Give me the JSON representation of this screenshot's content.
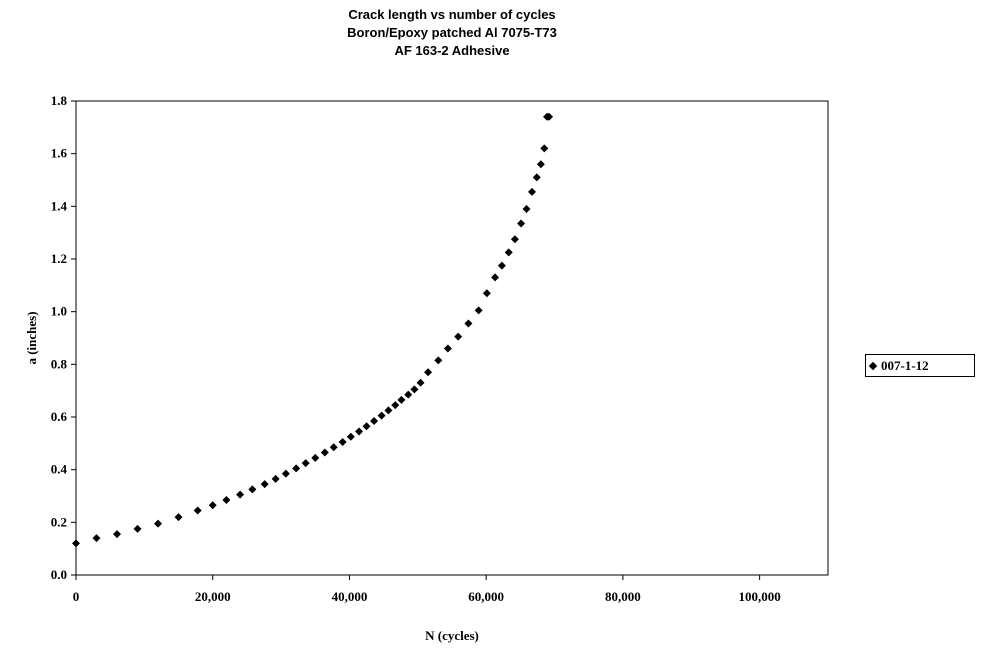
{
  "chart_data": {
    "type": "scatter",
    "title_lines": [
      "Crack length vs number of cycles",
      "Boron/Epoxy patched Al 7075-T73",
      "AF 163-2 Adhesive"
    ],
    "xlabel": "N (cycles)",
    "ylabel": "a (inches)",
    "xlim": [
      0,
      110000
    ],
    "ylim": [
      0,
      1.8
    ],
    "x_ticks": [
      0,
      20000,
      40000,
      60000,
      80000,
      100000
    ],
    "x_tick_labels": [
      "0",
      "20,000",
      "40,000",
      "60,000",
      "80,000",
      "100,000"
    ],
    "y_ticks": [
      0,
      0.2,
      0.4,
      0.6,
      0.8,
      1.0,
      1.2,
      1.4,
      1.6,
      1.8
    ],
    "y_tick_labels": [
      "0.0",
      "0.2",
      "0.4",
      "0.6",
      "0.8",
      "1.0",
      "1.2",
      "1.4",
      "1.6",
      "1.8"
    ],
    "grid": false,
    "legend_position": "right",
    "series": [
      {
        "name": "007-1-12",
        "color": "#000000",
        "marker": "diamond",
        "x": [
          0,
          3000,
          6000,
          9000,
          12000,
          15000,
          17800,
          20000,
          22000,
          24000,
          25800,
          27600,
          29200,
          30700,
          32200,
          33600,
          35000,
          36400,
          37700,
          39000,
          40200,
          41400,
          42500,
          43600,
          44700,
          45700,
          46700,
          47600,
          48600,
          49500,
          50400,
          51500,
          53000,
          54400,
          55900,
          57400,
          58900,
          60100,
          61300,
          62300,
          63300,
          64200,
          65100,
          65900,
          66700,
          67400,
          68000,
          68500,
          68900,
          69200
        ],
        "y": [
          0.12,
          0.14,
          0.155,
          0.175,
          0.195,
          0.22,
          0.245,
          0.265,
          0.285,
          0.305,
          0.325,
          0.345,
          0.365,
          0.385,
          0.405,
          0.425,
          0.445,
          0.465,
          0.485,
          0.505,
          0.525,
          0.545,
          0.565,
          0.585,
          0.605,
          0.625,
          0.645,
          0.665,
          0.685,
          0.705,
          0.73,
          0.77,
          0.815,
          0.86,
          0.905,
          0.955,
          1.005,
          1.07,
          1.13,
          1.175,
          1.225,
          1.275,
          1.335,
          1.39,
          1.455,
          1.51,
          1.56,
          1.62,
          1.74,
          1.74
        ]
      }
    ]
  }
}
